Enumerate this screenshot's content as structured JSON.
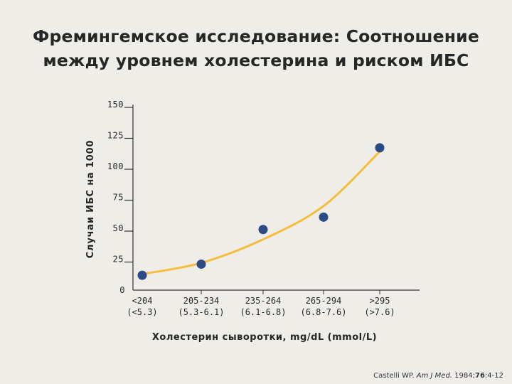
{
  "title": {
    "line1": "Фремингемское исследование: Соотношение",
    "line2": "между уровнем холестерина и риском ИБС"
  },
  "chart_data": {
    "type": "scatter",
    "title": "Фремингемское исследование: Соотношение между уровнем холестерина и риском ИБС",
    "xlabel": "Холестерин сыворотки, mg/dL (mmol/L)",
    "ylabel": "Случаи ИБС на 1000",
    "categories": [
      [
        "<204",
        "(<5.3)"
      ],
      [
        "205-234",
        "(5.3-6.1)"
      ],
      [
        "235-264",
        "(6.1-6.8)"
      ],
      [
        "265-294",
        "(6.8-7.6)"
      ],
      [
        ">295",
        "(>7.6)"
      ]
    ],
    "yticks": [
      0,
      25,
      50,
      75,
      100,
      125,
      150
    ],
    "ylim": [
      0,
      150
    ],
    "series": [
      {
        "values": [
          12,
          21,
          49,
          59,
          115
        ],
        "color": "#2b4a86"
      }
    ],
    "trendline": {
      "values": [
        13,
        22,
        41,
        68,
        112
      ],
      "color": "#f6bd3c"
    },
    "grid": false
  },
  "citation": {
    "author": "Castelli WP.",
    "journal": "Am J Med.",
    "year": "1984;",
    "volume": "76",
    "pages": ":4-12"
  }
}
